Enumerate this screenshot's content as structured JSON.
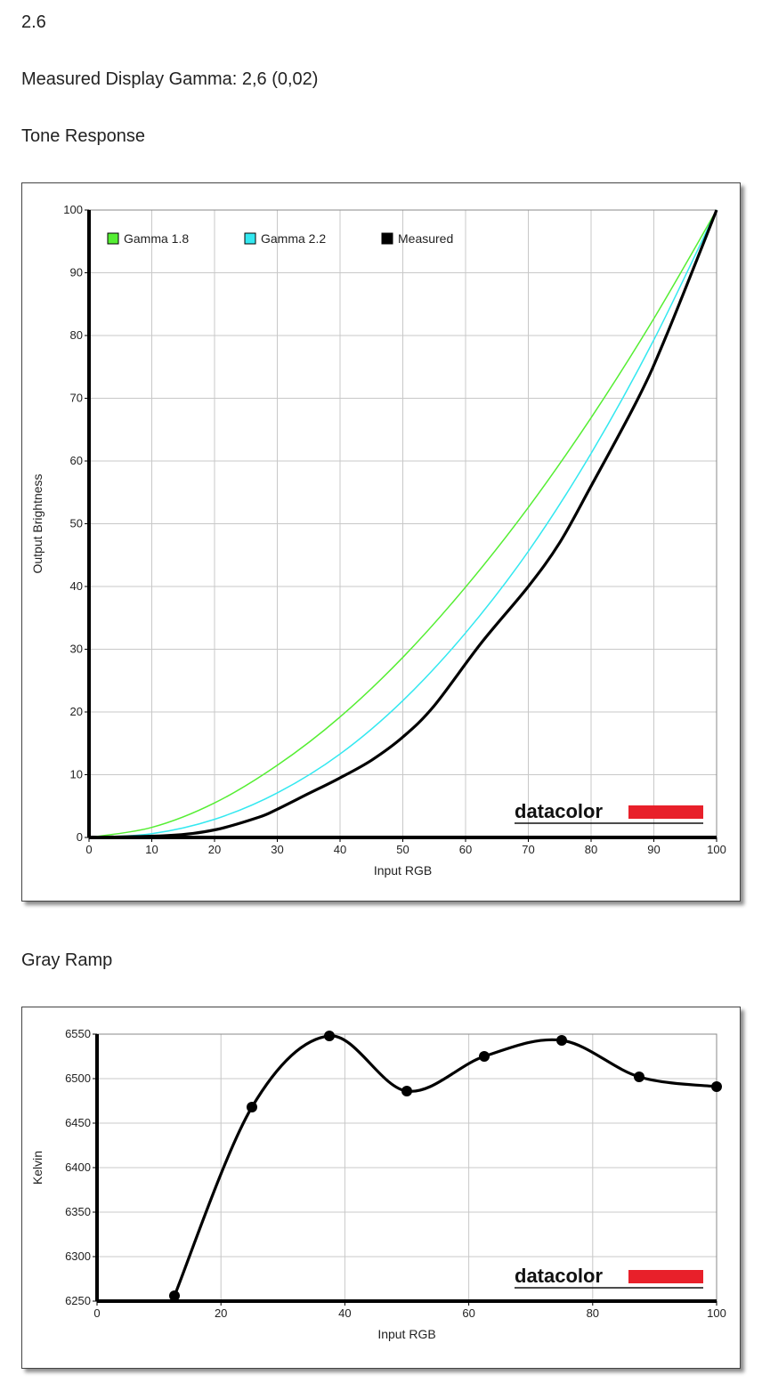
{
  "header": {
    "value": "2.6",
    "measured_gamma": "Measured Display Gamma: 2,6 (0,02)"
  },
  "colors": {
    "gamma18": "#55ee33",
    "gamma22": "#33e8f0",
    "measured": "#000000",
    "brand_bar": "#e8202a"
  },
  "brand": {
    "wordmark": "datacolor"
  },
  "chart_data": [
    {
      "type": "line",
      "title": "Tone Response",
      "xlabel": "Input RGB",
      "ylabel": "Output Brightness",
      "xlim": [
        0,
        100
      ],
      "ylim": [
        0,
        100
      ],
      "xticks": [
        0,
        10,
        20,
        30,
        40,
        50,
        60,
        70,
        80,
        90,
        100
      ],
      "yticks": [
        0,
        10,
        20,
        30,
        40,
        50,
        60,
        70,
        80,
        90,
        100
      ],
      "grid": true,
      "legend_position": "top-left",
      "series": [
        {
          "name": "Gamma 1.8",
          "color": "#55ee33",
          "x": [
            0,
            10,
            20,
            30,
            40,
            50,
            60,
            70,
            80,
            90,
            100
          ],
          "y": [
            0,
            1.6,
            5.5,
            11.5,
            19.2,
            28.7,
            39.9,
            52.6,
            66.9,
            82.7,
            100
          ]
        },
        {
          "name": "Gamma 2.2",
          "color": "#33e8f0",
          "x": [
            0,
            10,
            20,
            30,
            40,
            50,
            60,
            70,
            80,
            90,
            100
          ],
          "y": [
            0,
            0.6,
            2.9,
            7.1,
            13.3,
            21.8,
            32.6,
            45.6,
            61.2,
            79.3,
            100
          ]
        },
        {
          "name": "Measured",
          "color": "#000000",
          "x": [
            0,
            12.5,
            20,
            27,
            30,
            35,
            40,
            45,
            50,
            55,
            62.5,
            70,
            75,
            80,
            87.5,
            92,
            100
          ],
          "y": [
            0,
            0.3,
            1.2,
            3.2,
            4.5,
            7,
            9.5,
            12.3,
            16,
            21,
            31,
            40,
            47,
            56,
            70,
            80,
            100
          ]
        }
      ]
    },
    {
      "type": "line",
      "title": "Gray Ramp",
      "xlabel": "Input RGB",
      "ylabel": "Kelvin",
      "xlim": [
        0,
        100
      ],
      "ylim": [
        6250,
        6550
      ],
      "xticks": [
        0,
        20,
        40,
        60,
        80,
        100
      ],
      "yticks": [
        6250,
        6300,
        6350,
        6400,
        6450,
        6500,
        6550
      ],
      "grid": true,
      "series": [
        {
          "color": "#000000",
          "x": [
            12.5,
            25,
            37.5,
            50,
            62.5,
            75,
            87.5,
            100
          ],
          "y": [
            6256,
            6468,
            6548,
            6486,
            6525,
            6543,
            6502,
            6491
          ]
        }
      ]
    }
  ]
}
